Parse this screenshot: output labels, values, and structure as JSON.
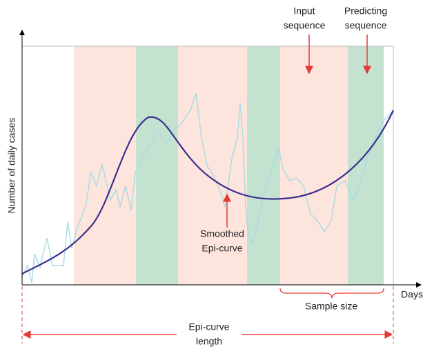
{
  "axes": {
    "y_label": "Number of  daily cases",
    "x_label": "Days"
  },
  "annotations": {
    "input_sequence": [
      "Input",
      "sequence"
    ],
    "predicting_sequence": [
      "Predicting",
      "sequence"
    ],
    "smoothed_curve": [
      "Smoothed",
      "Epi-curve"
    ],
    "sample_size": "Sample size",
    "curve_length": [
      "Epi-curve",
      "length"
    ]
  }
}
